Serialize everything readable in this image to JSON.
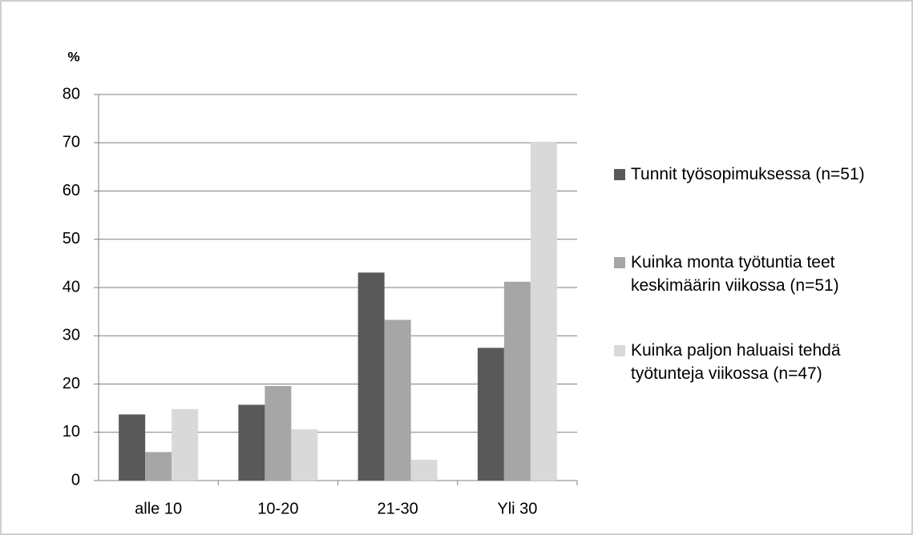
{
  "chart_data": {
    "type": "bar",
    "ylabel": "%",
    "categories": [
      "alle 10",
      "10-20",
      "21-30",
      "Yli 30"
    ],
    "series": [
      {
        "name": "Tunnit työsopimuksessa (n=51)",
        "color": "#595959",
        "values": [
          13.7,
          15.7,
          43.1,
          27.5
        ]
      },
      {
        "name": "Kuinka monta työtuntia teet keskimäärin viikossa (n=51)",
        "color": "#a6a6a6",
        "values": [
          5.9,
          19.6,
          33.3,
          41.2
        ]
      },
      {
        "name": "Kuinka paljon haluaisi tehdä työtunteja viikossa (n=47)",
        "color": "#d9d9d9",
        "values": [
          14.8,
          10.6,
          4.3,
          70.2
        ]
      }
    ],
    "ylim": [
      0,
      80
    ],
    "yticks": [
      0,
      10,
      20,
      30,
      40,
      50,
      60,
      70,
      80
    ],
    "grid": true,
    "legend": "right"
  }
}
